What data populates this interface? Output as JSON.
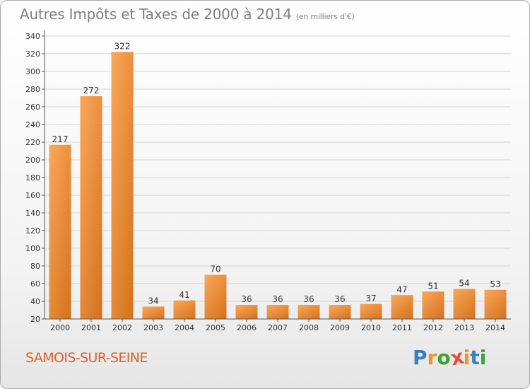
{
  "title": "Autres Impôts et Taxes de 2000 à 2014",
  "subtitle": "(en milliers d'€)",
  "city": "SAMOIS-SUR-SEINE",
  "logo": {
    "letters": [
      "P",
      "r",
      "o",
      "x",
      "i",
      "t",
      "i"
    ],
    "colors": [
      "#3a7fc1",
      "#f29422",
      "#3aa535",
      "#e84a3c",
      "#f29422",
      "#3a7fc1",
      "#3aa535"
    ]
  },
  "colors": {
    "bar_light": "#f9a85a",
    "bar_dark": "#d6731e",
    "grid": "#d4d4d4",
    "axis": "#555555",
    "text": "#7f7f7f"
  },
  "chart_data": {
    "type": "bar",
    "categories": [
      "2000",
      "2001",
      "2002",
      "2003",
      "2004",
      "2005",
      "2006",
      "2007",
      "2008",
      "2009",
      "2010",
      "2011",
      "2012",
      "2013",
      "2014"
    ],
    "values": [
      217,
      272,
      322,
      34,
      41,
      70,
      36,
      36,
      36,
      36,
      37,
      47,
      51,
      54,
      53
    ],
    "y_ticks": [
      20,
      40,
      60,
      80,
      100,
      120,
      140,
      160,
      180,
      200,
      220,
      240,
      260,
      280,
      300,
      320,
      340
    ],
    "ylim": [
      20,
      340
    ],
    "grid": true,
    "title": "Autres Impôts et Taxes de 2000 à 2014",
    "xlabel": "",
    "ylabel": ""
  }
}
